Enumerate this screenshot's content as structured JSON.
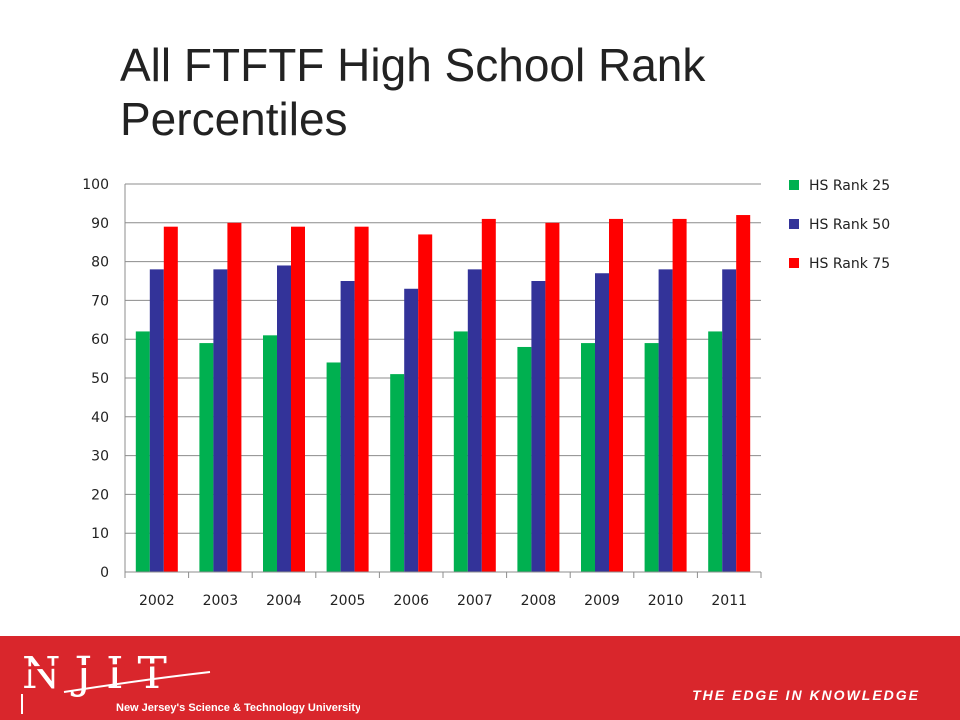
{
  "slide": {
    "title": "All FTFTF High School Rank Percentiles"
  },
  "footer": {
    "logo_text": "NJIT",
    "university_name": "New Jersey's Science & Technology University",
    "tagline": "THE EDGE IN KNOWLEDGE",
    "background_color": "#d9262c"
  },
  "chart_data": {
    "type": "bar",
    "title": "",
    "xlabel": "",
    "ylabel": "",
    "ylim": [
      0,
      100
    ],
    "yticks": [
      0,
      10,
      20,
      30,
      40,
      50,
      60,
      70,
      80,
      90,
      100
    ],
    "grid": true,
    "legend_position": "right",
    "categories": [
      "2002",
      "2003",
      "2004",
      "2005",
      "2006",
      "2007",
      "2008",
      "2009",
      "2010",
      "2011"
    ],
    "series": [
      {
        "name": "HS Rank 25",
        "color": "#00b050",
        "values": [
          62,
          59,
          61,
          54,
          51,
          62,
          58,
          59,
          59,
          62
        ]
      },
      {
        "name": "HS Rank 50",
        "color": "#333399",
        "values": [
          78,
          78,
          79,
          75,
          73,
          78,
          75,
          77,
          78,
          78
        ]
      },
      {
        "name": "HS Rank 75",
        "color": "#ff0000",
        "values": [
          89,
          90,
          89,
          89,
          87,
          91,
          90,
          91,
          91,
          92
        ]
      }
    ]
  }
}
